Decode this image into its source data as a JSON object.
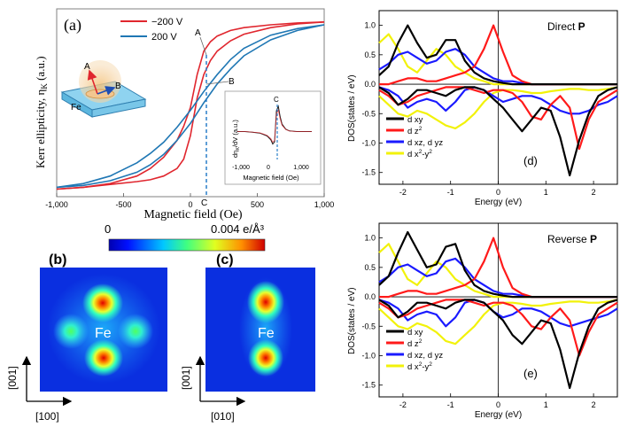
{
  "figure": {
    "colors": {
      "red": "#e0262e",
      "blue": "#1f77b4",
      "black": "#000000",
      "dos_red": "#ff1a1a",
      "dos_blue": "#1a1aff",
      "dos_yellow": "#f2f20a",
      "dashed": "#2a7fc9",
      "fe_plate": "#8fd3f0",
      "fe_plate_edge": "#2f7fb0",
      "fe_glow": "#f2c690"
    },
    "panel_a": {
      "label": "(a)",
      "ylabel_main": "Kerr ellipticity, η",
      "ylabel_sub": "K",
      "ylabel_unit": " (a.u.)",
      "schematic": {
        "material": "Fe",
        "arrow_a": "A",
        "arrow_b": "B"
      },
      "points": {
        "a": "A",
        "b": "B",
        "c": "C",
        "c2": "C"
      },
      "inset": {
        "ylabel": "dη",
        "ylabel_sub": "K",
        "ylabel_rest": "/dV (a.u.)",
        "xlabel": "Magnetic field (Oe)",
        "ticks": [
          "-1,000",
          "0",
          "1,000"
        ],
        "c_label": "C"
      }
    },
    "panel_b": {
      "label": "(b)",
      "atom": "Fe",
      "axis_up": "[001]",
      "axis_right": "[100]"
    },
    "panel_c": {
      "label": "(c)",
      "atom": "Fe",
      "axis_up": "[001]",
      "axis_right": "[010]"
    },
    "colorbar": {
      "min_label": "0",
      "max_label": "0.004 e/Å³"
    }
  },
  "chart_data": [
    {
      "id": "kerr-hysteresis",
      "type": "line",
      "title": "",
      "xlabel": "Magnetic field (Oe)",
      "ylabel": "Kerr ellipticity, ηK (a.u.)",
      "xlim": [
        -1000,
        1000
      ],
      "ylim": [
        -1.0,
        1.0
      ],
      "xticks": [
        -1000,
        -500,
        0,
        500,
        1000
      ],
      "xtick_labels": [
        "-1,000",
        "-500",
        "0",
        "500",
        "1,000"
      ],
      "legend": "top-center",
      "series": [
        {
          "name": "−200 V",
          "color": "#e0262e",
          "x": [
            -1000,
            -800,
            -600,
            -400,
            -300,
            -200,
            -100,
            -50,
            0,
            50,
            100,
            150,
            200,
            300,
            400,
            600,
            800,
            1000
          ],
          "branch_up": [
            -0.92,
            -0.9,
            -0.86,
            -0.78,
            -0.7,
            -0.58,
            -0.4,
            -0.25,
            -0.05,
            0.3,
            0.55,
            0.65,
            0.71,
            0.77,
            0.8,
            0.83,
            0.85,
            0.86
          ],
          "branch_down": [
            -0.92,
            -0.9,
            -0.87,
            -0.84,
            -0.82,
            -0.78,
            -0.7,
            -0.6,
            -0.35,
            0.05,
            0.3,
            0.45,
            0.55,
            0.66,
            0.73,
            0.8,
            0.84,
            0.86
          ]
        },
        {
          "name": "200 V",
          "color": "#1f77b4",
          "x": [
            -1000,
            -800,
            -600,
            -400,
            -300,
            -200,
            -100,
            0,
            100,
            200,
            300,
            400,
            600,
            800,
            1000
          ],
          "branch_up": [
            -0.9,
            -0.86,
            -0.78,
            -0.64,
            -0.54,
            -0.42,
            -0.26,
            -0.08,
            0.12,
            0.3,
            0.46,
            0.58,
            0.72,
            0.79,
            0.83
          ],
          "branch_down": [
            -0.9,
            -0.88,
            -0.83,
            -0.74,
            -0.66,
            -0.55,
            -0.4,
            -0.22,
            0.0,
            0.2,
            0.36,
            0.5,
            0.67,
            0.77,
            0.83
          ]
        }
      ],
      "points": {
        "A_field": 220,
        "B_field": 220,
        "C_field": 100
      }
    },
    {
      "id": "kerr-derivative-inset",
      "type": "line",
      "xlabel": "Magnetic field (Oe)",
      "ylabel": "dηK/dV (a.u.)",
      "xlim": [
        -1000,
        1000
      ],
      "ylim": [
        -1.0,
        1.0
      ],
      "series": [
        {
          "name": "dηK/dV",
          "color": "#1a1a1a",
          "x": [
            -1000,
            -800,
            -600,
            -400,
            -300,
            -200,
            -100,
            -50,
            0,
            50,
            100,
            150,
            200,
            300,
            400,
            600,
            800,
            1000
          ],
          "y": [
            0.0,
            0.0,
            0.02,
            0.05,
            0.1,
            0.15,
            0.28,
            0.42,
            0.35,
            -0.7,
            -0.85,
            -0.5,
            -0.25,
            -0.08,
            -0.02,
            0.0,
            0.0,
            0.0
          ]
        }
      ]
    },
    {
      "id": "dos-direct",
      "type": "line",
      "annotation": "Direct P",
      "panel_label": "(d)",
      "xlabel": "Energy (eV)",
      "ylabel": "DOS(states / eV)",
      "xlim": [
        -2.5,
        2.5
      ],
      "ylim": [
        -1.7,
        1.25
      ],
      "xticks": [
        -2,
        -1,
        0,
        1,
        2
      ],
      "yticks": [
        -1.5,
        -1.0,
        -0.5,
        0.0,
        0.5,
        1.0
      ],
      "ytick_labels": [
        "-1.5",
        "-1.0",
        "-0.5",
        "0.0",
        "0.5",
        "1.0"
      ],
      "legend": "bottom-left",
      "x": [
        -2.5,
        -2.3,
        -2.1,
        -1.9,
        -1.7,
        -1.5,
        -1.3,
        -1.1,
        -0.9,
        -0.7,
        -0.5,
        -0.3,
        -0.1,
        0.1,
        0.3,
        0.5,
        0.7,
        0.9,
        1.1,
        1.3,
        1.5,
        1.7,
        1.9,
        2.1,
        2.3,
        2.5
      ],
      "series": [
        {
          "name": "d xy",
          "label_main": "d xy",
          "label_sup": "",
          "color": "#000000",
          "up": [
            0.15,
            0.3,
            0.7,
            1.0,
            0.7,
            0.45,
            0.5,
            0.75,
            0.75,
            0.4,
            0.2,
            0.1,
            0.05,
            0.02,
            0.0,
            0.0,
            0.0,
            0.0,
            0.0,
            0.0,
            0.0,
            0.0,
            0.0,
            0.0,
            0.0,
            0.0
          ],
          "down": [
            -0.05,
            -0.15,
            -0.35,
            -0.25,
            -0.1,
            -0.1,
            -0.15,
            -0.2,
            -0.1,
            -0.05,
            -0.05,
            -0.1,
            -0.25,
            -0.4,
            -0.6,
            -0.8,
            -0.6,
            -0.4,
            -0.45,
            -0.9,
            -1.55,
            -0.95,
            -0.5,
            -0.2,
            -0.1,
            -0.05
          ]
        },
        {
          "name": "d z2",
          "label_main": "d z",
          "label_sup": "2",
          "color": "#ff1a1a",
          "up": [
            0.0,
            0.0,
            0.05,
            0.1,
            0.1,
            0.05,
            0.05,
            0.1,
            0.15,
            0.2,
            0.3,
            0.6,
            1.0,
            0.55,
            0.15,
            0.05,
            0.0,
            0.0,
            0.0,
            0.0,
            0.0,
            0.0,
            0.0,
            0.0,
            0.0,
            0.0
          ],
          "down": [
            -0.1,
            -0.2,
            -0.35,
            -0.3,
            -0.2,
            -0.15,
            -0.1,
            -0.05,
            -0.05,
            -0.05,
            -0.1,
            -0.15,
            -0.1,
            -0.1,
            -0.15,
            -0.3,
            -0.55,
            -0.6,
            -0.35,
            -0.2,
            -0.4,
            -1.1,
            -0.6,
            -0.3,
            -0.2,
            -0.1
          ]
        },
        {
          "name": "d xz, d yz",
          "label_main": "d xz, d yz",
          "label_sup": "",
          "color": "#1a1aff",
          "up": [
            0.25,
            0.35,
            0.5,
            0.55,
            0.45,
            0.35,
            0.4,
            0.55,
            0.6,
            0.5,
            0.3,
            0.2,
            0.1,
            0.05,
            0.05,
            0.02,
            0.0,
            0.0,
            0.0,
            0.0,
            0.0,
            0.0,
            0.0,
            0.0,
            0.0,
            0.0
          ],
          "down": [
            -0.05,
            -0.1,
            -0.2,
            -0.4,
            -0.3,
            -0.25,
            -0.3,
            -0.45,
            -0.3,
            -0.1,
            -0.05,
            -0.1,
            -0.2,
            -0.3,
            -0.25,
            -0.2,
            -0.2,
            -0.25,
            -0.35,
            -0.45,
            -0.5,
            -0.5,
            -0.45,
            -0.35,
            -0.3,
            -0.2
          ]
        },
        {
          "name": "d x2-y2",
          "label_main": "d x",
          "label_sup": "2",
          "label_mid": "-y",
          "label_sup2": "2",
          "color": "#f2f20a",
          "up": [
            0.7,
            0.85,
            0.6,
            0.3,
            0.2,
            0.4,
            0.6,
            0.5,
            0.3,
            0.2,
            0.1,
            0.05,
            0.0,
            0.0,
            0.0,
            0.0,
            0.0,
            0.0,
            0.0,
            0.0,
            0.0,
            0.0,
            0.0,
            0.0,
            0.0,
            0.0
          ],
          "down": [
            -0.2,
            -0.35,
            -0.5,
            -0.55,
            -0.45,
            -0.5,
            -0.6,
            -0.7,
            -0.75,
            -0.65,
            -0.5,
            -0.3,
            -0.15,
            -0.1,
            -0.1,
            -0.12,
            -0.15,
            -0.15,
            -0.12,
            -0.1,
            -0.08,
            -0.08,
            -0.1,
            -0.1,
            -0.08,
            -0.05
          ]
        }
      ]
    },
    {
      "id": "dos-reverse",
      "type": "line",
      "annotation": "Reverse P",
      "panel_label": "(e)",
      "xlabel": "Energy (eV)",
      "ylabel": "DOS(states / eV)",
      "xlim": [
        -2.5,
        2.5
      ],
      "ylim": [
        -1.7,
        1.25
      ],
      "xticks": [
        -2,
        -1,
        0,
        1,
        2
      ],
      "yticks": [
        -1.5,
        -1.0,
        -0.5,
        0.0,
        0.5,
        1.0
      ],
      "ytick_labels": [
        "-1.5",
        "-1.0",
        "-0.5",
        "0.0",
        "0.5",
        "1.0"
      ],
      "legend": "bottom-left",
      "x": [
        -2.5,
        -2.3,
        -2.1,
        -1.9,
        -1.7,
        -1.5,
        -1.3,
        -1.1,
        -0.9,
        -0.7,
        -0.5,
        -0.3,
        -0.1,
        0.1,
        0.3,
        0.5,
        0.7,
        0.9,
        1.1,
        1.3,
        1.5,
        1.7,
        1.9,
        2.1,
        2.3,
        2.5
      ],
      "series": [
        {
          "name": "d xy",
          "label_main": "d xy",
          "label_sup": "",
          "color": "#000000",
          "up": [
            0.2,
            0.35,
            0.75,
            1.1,
            0.8,
            0.5,
            0.55,
            0.85,
            0.9,
            0.45,
            0.2,
            0.1,
            0.05,
            0.02,
            0.0,
            0.0,
            0.0,
            0.0,
            0.0,
            0.0,
            0.0,
            0.0,
            0.0,
            0.0,
            0.0,
            0.0
          ],
          "down": [
            -0.05,
            -0.15,
            -0.35,
            -0.25,
            -0.1,
            -0.1,
            -0.15,
            -0.2,
            -0.1,
            -0.05,
            -0.05,
            -0.1,
            -0.25,
            -0.4,
            -0.65,
            -0.8,
            -0.6,
            -0.4,
            -0.45,
            -0.9,
            -1.55,
            -0.95,
            -0.5,
            -0.2,
            -0.1,
            -0.05
          ]
        },
        {
          "name": "d z2",
          "label_main": "d z",
          "label_sup": "2",
          "color": "#ff1a1a",
          "up": [
            0.0,
            0.0,
            0.05,
            0.1,
            0.1,
            0.05,
            0.05,
            0.1,
            0.15,
            0.2,
            0.3,
            0.6,
            1.0,
            0.5,
            0.15,
            0.05,
            0.0,
            0.0,
            0.0,
            0.0,
            0.0,
            0.0,
            0.0,
            0.0,
            0.0,
            0.0
          ],
          "down": [
            -0.1,
            -0.2,
            -0.35,
            -0.3,
            -0.2,
            -0.15,
            -0.1,
            -0.05,
            -0.05,
            -0.05,
            -0.1,
            -0.15,
            -0.1,
            -0.1,
            -0.15,
            -0.3,
            -0.5,
            -0.55,
            -0.35,
            -0.2,
            -0.4,
            -1.0,
            -0.6,
            -0.3,
            -0.2,
            -0.1
          ]
        },
        {
          "name": "d xz, d yz",
          "label_main": "d xz, d yz",
          "label_sup": "",
          "color": "#1a1aff",
          "up": [
            0.25,
            0.35,
            0.5,
            0.55,
            0.45,
            0.35,
            0.4,
            0.6,
            0.65,
            0.5,
            0.3,
            0.2,
            0.1,
            0.05,
            0.05,
            0.02,
            0.0,
            0.0,
            0.0,
            0.0,
            0.0,
            0.0,
            0.0,
            0.0,
            0.0,
            0.0
          ],
          "down": [
            -0.05,
            -0.1,
            -0.2,
            -0.4,
            -0.3,
            -0.25,
            -0.3,
            -0.5,
            -0.35,
            -0.1,
            -0.05,
            -0.1,
            -0.25,
            -0.35,
            -0.3,
            -0.2,
            -0.2,
            -0.25,
            -0.35,
            -0.45,
            -0.5,
            -0.45,
            -0.4,
            -0.35,
            -0.3,
            -0.2
          ]
        },
        {
          "name": "d x2-y2",
          "label_main": "d x",
          "label_sup": "2",
          "label_mid": "-y",
          "label_sup2": "2",
          "color": "#f2f20a",
          "up": [
            0.75,
            0.9,
            0.6,
            0.3,
            0.2,
            0.4,
            0.6,
            0.5,
            0.3,
            0.2,
            0.1,
            0.05,
            0.0,
            0.0,
            0.0,
            0.0,
            0.0,
            0.0,
            0.0,
            0.0,
            0.0,
            0.0,
            0.0,
            0.0,
            0.0,
            0.0
          ],
          "down": [
            -0.2,
            -0.35,
            -0.5,
            -0.55,
            -0.45,
            -0.5,
            -0.6,
            -0.75,
            -0.8,
            -0.65,
            -0.5,
            -0.3,
            -0.15,
            -0.1,
            -0.1,
            -0.12,
            -0.15,
            -0.15,
            -0.12,
            -0.1,
            -0.08,
            -0.08,
            -0.1,
            -0.1,
            -0.08,
            -0.05
          ]
        }
      ]
    }
  ]
}
